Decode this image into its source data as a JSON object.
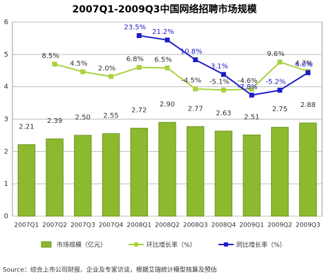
{
  "chart_data": {
    "type": "bar-line",
    "title": "2007Q1-2009Q3中国网络招聘市场规模",
    "categories": [
      "2007Q1",
      "2007Q2",
      "2007Q3",
      "2007Q4",
      "2008Q1",
      "2008Q2",
      "2008Q3",
      "2008Q4",
      "2009Q1",
      "2009Q2",
      "2009Q3"
    ],
    "ylim": [
      0,
      6
    ],
    "yticks": [
      0,
      1,
      2,
      3,
      4,
      5,
      6
    ],
    "grid": true,
    "y2lim": [
      -71.4,
      30.6
    ],
    "series": [
      {
        "name": "市场规模（亿元）",
        "kind": "bar",
        "color": "#8db92e",
        "values": [
          2.21,
          2.39,
          2.5,
          2.55,
          2.72,
          2.9,
          2.77,
          2.63,
          2.51,
          2.75,
          2.88
        ],
        "value_labels": [
          "2.21",
          "2.39",
          "2.50",
          "2.55",
          "2.72",
          "2.90",
          "2.77",
          "2.63",
          "2.51",
          "2.75",
          "2.88"
        ]
      },
      {
        "name": "环比增长率（%）",
        "kind": "line",
        "axis": "y2",
        "color": "#a8d13e",
        "label_color": "#333333",
        "values": [
          null,
          8.5,
          4.5,
          2.0,
          6.8,
          6.5,
          -4.5,
          -5.1,
          -4.6,
          9.6,
          4.7
        ],
        "value_labels": [
          null,
          "8.5%",
          "4.5%",
          "2.0%",
          "6.8%",
          "6.5%",
          "-4.5%",
          "-5.1%",
          "-4.6%",
          "9.6%",
          "4.7%"
        ]
      },
      {
        "name": "同比增长率（%）",
        "kind": "line",
        "axis": "y2",
        "color": "#1c1cc8",
        "label_color": "#1c1cc8",
        "values": [
          null,
          null,
          null,
          null,
          23.5,
          21.2,
          10.8,
          3.1,
          -7.8,
          -5.2,
          4.0
        ],
        "value_labels": [
          null,
          null,
          null,
          null,
          "23.5%",
          "21.2%",
          "10.8%",
          "3.1%",
          "-7.8%",
          "-5.2%",
          "4.0%"
        ]
      }
    ],
    "source": "Source：综合上市公司财报、企业及专家访谈，根据艾瑞统计模型核算及预估"
  }
}
